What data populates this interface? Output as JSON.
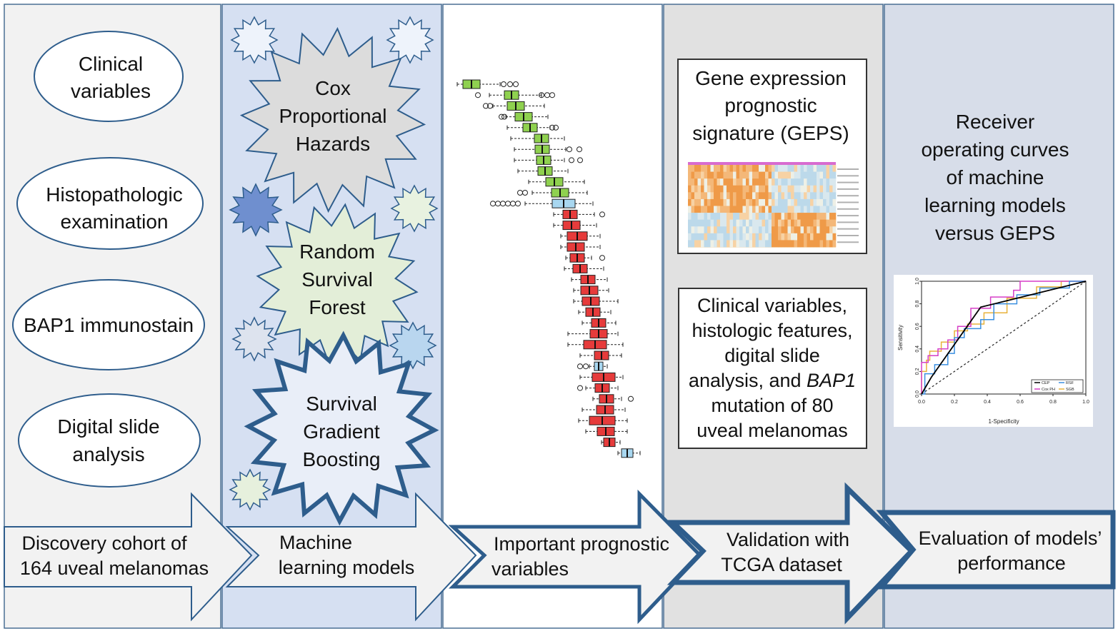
{
  "inputs": [
    {
      "lines": [
        "Clinical",
        "variables"
      ]
    },
    {
      "lines": [
        "Histopathologic",
        "examination"
      ]
    },
    {
      "lines": [
        "BAP1 immunostain"
      ]
    },
    {
      "lines": [
        "Digital slide",
        "analysis"
      ]
    }
  ],
  "models": [
    {
      "lines": [
        "Cox",
        "Proportional",
        "Hazards"
      ]
    },
    {
      "lines": [
        "Random",
        "Survival",
        "Forest"
      ]
    },
    {
      "lines": [
        "Survival",
        "Gradient",
        "Boosting"
      ]
    }
  ],
  "geps_box": {
    "lines": [
      "Gene expression",
      "prognostic",
      "signature (GEPS)"
    ]
  },
  "validation_box": {
    "lines": [
      "Clinical variables,",
      "histologic features,",
      "digital slide",
      "analysis, and BAP1",
      "mutation of 80",
      "uveal melanomas"
    ],
    "italic_word": "BAP1"
  },
  "roc_title": {
    "lines": [
      "Receiver",
      "operating curves",
      "of machine",
      "learning models",
      "versus GEPS"
    ]
  },
  "steps": [
    {
      "lines": [
        "Discovery cohort of",
        "164 uveal melanomas"
      ]
    },
    {
      "lines": [
        "Machine",
        "learning models"
      ]
    },
    {
      "lines": [
        "Important prognostic",
        "variables"
      ]
    },
    {
      "lines": [
        "Validation with",
        "TCGA dataset"
      ]
    },
    {
      "lines": [
        "Evaluation of models’",
        "performance"
      ]
    }
  ],
  "roc_chart": {
    "xlabel": "1-Specificity",
    "ylabel": "Sensitivity",
    "x_ticks": [
      "0.0",
      "0.2",
      "0.4",
      "0.6",
      "0.8",
      "1.0"
    ],
    "y_ticks": [
      "0.0",
      "0.2",
      "0.4",
      "0.6",
      "0.8",
      "1.0"
    ],
    "legend": [
      "CEP",
      "RSF",
      "Cox PH",
      "SGB"
    ],
    "colors": {
      "CEP": "#000000",
      "RSF": "#3a8fe0",
      "Cox PH": "#d63fc7",
      "SGB": "#e8b23a"
    }
  },
  "colors": {
    "panel1": "#f2f2f2",
    "panel2": "#d6e0f2",
    "panel3": "#ffffff",
    "panel4": "#e1e1e1",
    "panel5": "#d7dde9",
    "arrow_border": "#2e5d8c",
    "green_box": "#8fd14f",
    "red_box": "#e63b3b",
    "blue_box": "#a8d7f0"
  }
}
